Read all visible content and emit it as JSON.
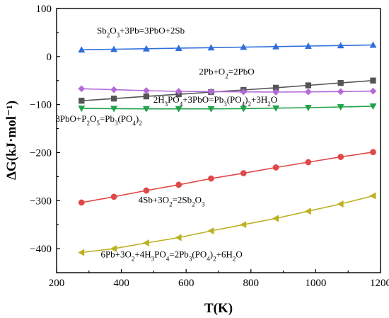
{
  "chart_data": {
    "type": "line",
    "title": "",
    "xlabel": "T(K)",
    "ylabel": "ΔG(kJ·mol⁻¹)",
    "xlim": [
      200,
      1200
    ],
    "ylim": [
      -450,
      100
    ],
    "xticks": [
      200,
      400,
      600,
      800,
      1000,
      1200
    ],
    "yticks": [
      100,
      0,
      -100,
      -200,
      -300,
      -400
    ],
    "xtick_labels": [
      "200",
      "400",
      "600",
      "800",
      "1000",
      "1200"
    ],
    "ytick_labels": [
      "100",
      "0",
      "−100",
      "−200",
      "−300",
      "−400"
    ],
    "grid": false,
    "legend": "none (inline annotations)",
    "x": [
      277,
      377,
      477,
      577,
      677,
      777,
      877,
      977,
      1077,
      1177
    ],
    "series": [
      {
        "name": "Sb2O3+3Pb=3PbO+2Sb",
        "color": "#2f6fdc",
        "marker": "triangle-up",
        "values": [
          14,
          15.2,
          16.3,
          17.4,
          18.5,
          19.6,
          20.7,
          21.8,
          22.9,
          24
        ]
      },
      {
        "name": "2Pb+O2=2PbO",
        "color": "#555555",
        "marker": "square",
        "values": [
          -92,
          -87.5,
          -83,
          -78.5,
          -74,
          -69.5,
          -65,
          -60,
          -55,
          -50
        ]
      },
      {
        "name": "2H3PO4+3PbO=Pb3(PO4)2+3H2O",
        "color": "#b36ad9",
        "marker": "diamond",
        "values": [
          -67,
          -69,
          -71,
          -72.5,
          -73,
          -73.5,
          -74,
          -73.5,
          -73,
          -72
        ]
      },
      {
        "name": "3PbO+P2O5=Pb3(PO4)2",
        "color": "#22a34a",
        "marker": "triangle-down",
        "values": [
          -108,
          -108.5,
          -109,
          -109,
          -109,
          -108.5,
          -107.5,
          -106.5,
          -105,
          -103.5
        ]
      },
      {
        "name": "4Sb+3O2=2Sb2O3",
        "color": "#e04848",
        "marker": "circle",
        "values": [
          -304,
          -292,
          -279,
          -267,
          -254,
          -243,
          -231,
          -220,
          -209,
          -199
        ]
      },
      {
        "name": "6Pb+3O2+4H3PO4=2Pb3(PO4)2+6H2O",
        "color": "#bdb020",
        "marker": "triangle-left",
        "values": [
          -408,
          -400,
          -388,
          -377,
          -363,
          -350,
          -337,
          -322,
          -307,
          -290
        ]
      }
    ],
    "annotations": [
      {
        "parts": [
          [
            "Sb",
            ""
          ],
          [
            "2",
            "sub"
          ],
          [
            "O",
            ""
          ],
          [
            "3",
            "sub"
          ],
          [
            "+3Pb=3PbO+2Sb",
            ""
          ]
        ],
        "x": 460,
        "y": 48
      },
      {
        "parts": [
          [
            "2Pb+O",
            ""
          ],
          [
            "2",
            "sub"
          ],
          [
            "=2PbO",
            ""
          ]
        ],
        "x": 725,
        "y": -38
      },
      {
        "parts": [
          [
            "2H",
            ""
          ],
          [
            "3",
            "sub"
          ],
          [
            "PO",
            ""
          ],
          [
            "4",
            "sub"
          ],
          [
            "+3PbO=Pb",
            ""
          ],
          [
            "3",
            "sub"
          ],
          [
            "(PO",
            ""
          ],
          [
            "4",
            "sub"
          ],
          [
            ")",
            ""
          ],
          [
            "2",
            "sub"
          ],
          [
            "+3H",
            ""
          ],
          [
            "2",
            "sub"
          ],
          [
            "O",
            ""
          ]
        ],
        "x": 690,
        "y": -96
      },
      {
        "parts": [
          [
            "3PbO+P",
            ""
          ],
          [
            "2",
            "sub"
          ],
          [
            "O",
            ""
          ],
          [
            "5",
            "sub"
          ],
          [
            "=Pb",
            ""
          ],
          [
            "3",
            "sub"
          ],
          [
            "(PO",
            ""
          ],
          [
            "4",
            "sub"
          ],
          [
            ")",
            ""
          ],
          [
            "2",
            "sub"
          ]
        ],
        "x": 330,
        "y": -136
      },
      {
        "parts": [
          [
            "4Sb+3O",
            ""
          ],
          [
            "2",
            "sub"
          ],
          [
            "=2Sb",
            ""
          ],
          [
            "2",
            "sub"
          ],
          [
            "O",
            ""
          ],
          [
            "3",
            "sub"
          ]
        ],
        "x": 555,
        "y": -305
      },
      {
        "parts": [
          [
            "6Pb+3O",
            ""
          ],
          [
            "2",
            "sub"
          ],
          [
            "+4H",
            ""
          ],
          [
            "3",
            "sub"
          ],
          [
            "PO",
            ""
          ],
          [
            "4",
            "sub"
          ],
          [
            "=2Pb",
            ""
          ],
          [
            "3",
            "sub"
          ],
          [
            "(PO",
            ""
          ],
          [
            "4",
            "sub"
          ],
          [
            ")",
            ""
          ],
          [
            "2",
            "sub"
          ],
          [
            "+6H",
            ""
          ],
          [
            "2",
            "sub"
          ],
          [
            "O",
            ""
          ]
        ],
        "x": 555,
        "y": -418
      }
    ]
  }
}
